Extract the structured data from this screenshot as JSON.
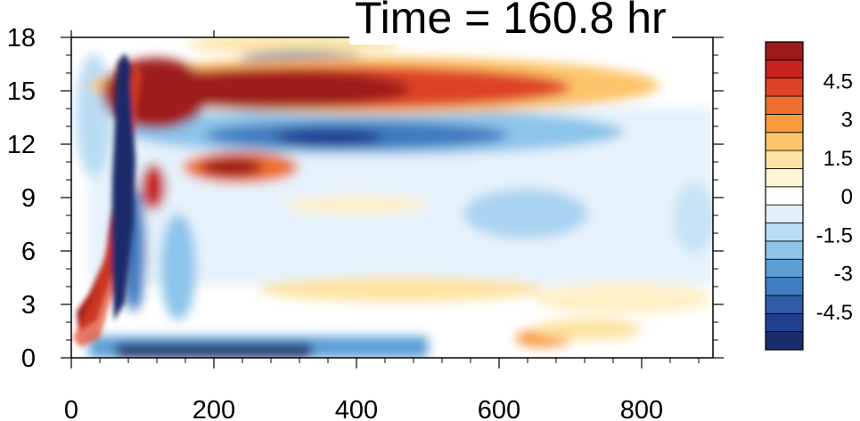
{
  "title": "Time = 160.8 hr",
  "chart_data": {
    "type": "heatmap",
    "title": "Time = 160.8 hr",
    "xlabel": "",
    "ylabel": "",
    "xlim": [
      0,
      900
    ],
    "ylim": [
      0,
      18
    ],
    "x_ticks": [
      0,
      200,
      400,
      600,
      800
    ],
    "x_tick_labels": [
      "0",
      "200",
      "400",
      "600",
      "800"
    ],
    "y_ticks": [
      0,
      3,
      6,
      9,
      12,
      15,
      18
    ],
    "y_tick_labels": [
      "0",
      "3",
      "6",
      "9",
      "12",
      "15",
      "18"
    ],
    "colorbar": {
      "range": [
        -6,
        6
      ],
      "levels": [
        -6,
        -5.25,
        -4.5,
        -3.75,
        -3,
        -2.25,
        -1.5,
        -0.75,
        -0.25,
        0.25,
        0.75,
        1.5,
        2.25,
        3,
        3.75,
        4.5,
        5.25,
        6
      ],
      "tick_values": [
        4.5,
        3,
        1.5,
        0,
        -1.5,
        -3,
        -4.5
      ],
      "tick_labels": [
        "4.5",
        "3",
        "1.5",
        "0",
        "-1.5",
        "-3",
        "-4.5"
      ],
      "colors": [
        "#1a2c6b",
        "#223f8f",
        "#2f5ba8",
        "#3f7cc0",
        "#5b9ed6",
        "#8cc4ea",
        "#b9dcf3",
        "#e1f0fa",
        "#ffffff",
        "#fff4d6",
        "#fde3a3",
        "#fcc46b",
        "#f99a3f",
        "#ef6f2e",
        "#de4325",
        "#c8231f",
        "#9f1a1a"
      ]
    },
    "features": [
      {
        "name": "upper warm band",
        "x": [
          80,
          720
        ],
        "y": [
          14.6,
          16.6
        ],
        "value": 5.5
      },
      {
        "name": "upper cold band",
        "x": [
          150,
          560
        ],
        "y": [
          11.6,
          13.4
        ],
        "value": -3.8
      },
      {
        "name": "mid warm patch",
        "x": [
          200,
          320
        ],
        "y": [
          9.8,
          11.2
        ],
        "value": 4.5
      },
      {
        "name": "tilted warm front",
        "x": [
          15,
          90
        ],
        "y": [
          0.5,
          17
        ],
        "value": 5
      },
      {
        "name": "tilted cold front",
        "x": [
          40,
          80
        ],
        "y": [
          2,
          17
        ],
        "value": -4.5
      },
      {
        "name": "surface cold layer",
        "x": [
          60,
          400
        ],
        "y": [
          0,
          1
        ],
        "value": -5
      },
      {
        "name": "warm patch near surface",
        "x": [
          610,
          700
        ],
        "y": [
          0.6,
          1.4
        ],
        "value": 2
      }
    ]
  }
}
